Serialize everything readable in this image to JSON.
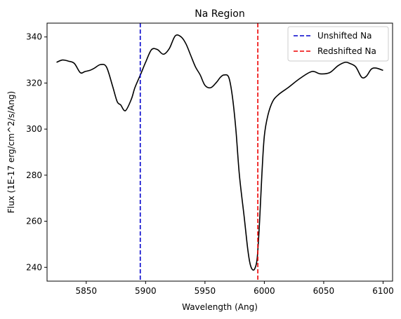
{
  "chart_data": {
    "type": "line",
    "title": "Na Region",
    "xlabel": "Wavelength (Ang)",
    "ylabel": "Flux (1E-17 erg/cm^2/s/Ang)",
    "xlim": [
      5817,
      6108
    ],
    "ylim": [
      234,
      346
    ],
    "xticks": [
      5850,
      5900,
      5950,
      6000,
      6050,
      6100
    ],
    "yticks": [
      240,
      260,
      280,
      300,
      320,
      340
    ],
    "grid": false,
    "legend_position": "top-right",
    "series": [
      {
        "color": "#000000",
        "x": [
          5825,
          5830,
          5835,
          5840,
          5845,
          5849,
          5853,
          5857,
          5862,
          5867,
          5872,
          5876,
          5879,
          5883,
          5888,
          5891,
          5896,
          5900,
          5905,
          5910,
          5915,
          5920,
          5925,
          5930,
          5934,
          5938,
          5942,
          5946,
          5950,
          5955,
          5960,
          5963,
          5966,
          5970,
          5973,
          5976,
          5979,
          5983,
          5986,
          5988,
          5990,
          5992,
          5994,
          5996,
          5998,
          6000,
          6003,
          6007,
          6012,
          6020,
          6030,
          6040,
          6047,
          6055,
          6062,
          6068,
          6072,
          6077,
          6082,
          6086,
          6090,
          6094,
          6100
        ],
        "values": [
          329,
          330,
          329.5,
          328.5,
          324.5,
          325,
          325.5,
          326.5,
          328,
          327,
          319,
          312,
          310.5,
          308,
          313,
          318,
          324,
          329,
          334.5,
          334.5,
          332.5,
          335,
          340.5,
          340,
          337,
          332,
          327,
          323.5,
          319,
          318,
          320.5,
          322.5,
          323.5,
          322.5,
          314.5,
          300,
          280,
          262,
          248,
          241.5,
          239,
          239.5,
          244,
          260,
          281,
          297,
          306,
          312,
          315,
          318,
          322,
          325,
          324,
          324.5,
          327.5,
          329,
          328.5,
          327,
          322.5,
          323,
          326,
          326.5,
          325.5
        ]
      }
    ],
    "vlines": [
      {
        "name": "Unshifted Na",
        "x": 5895.5,
        "color": "#0000cc"
      },
      {
        "name": "Redshifted Na",
        "x": 5994.5,
        "color": "#ee0000"
      }
    ]
  }
}
